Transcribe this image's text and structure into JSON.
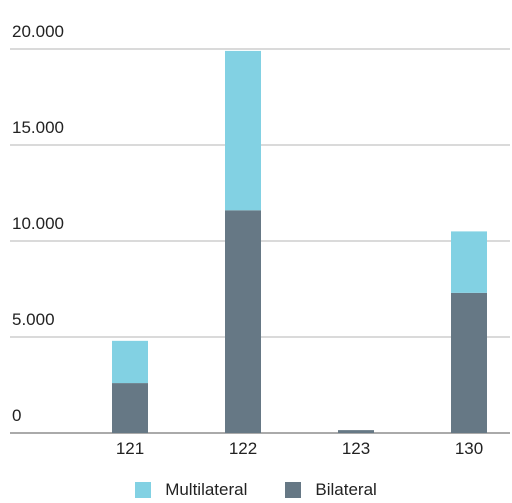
{
  "chart_data": {
    "type": "bar",
    "stacked": true,
    "categories": [
      "121",
      "122",
      "123",
      "130"
    ],
    "series": [
      {
        "name": "Bilateral",
        "color": "#667885",
        "values": [
          2600,
          11600,
          150,
          7300
        ]
      },
      {
        "name": "Multilateral",
        "color": "#82d1e3",
        "values": [
          2200,
          8300,
          0,
          3200
        ]
      }
    ],
    "y_ticks": [
      "0",
      "5.000",
      "10.000",
      "15.000",
      "20.000"
    ],
    "ylim": [
      0,
      20000
    ],
    "grid": true,
    "legend_position": "bottom-center",
    "legend": [
      "Multilateral",
      "Bilateral"
    ]
  }
}
